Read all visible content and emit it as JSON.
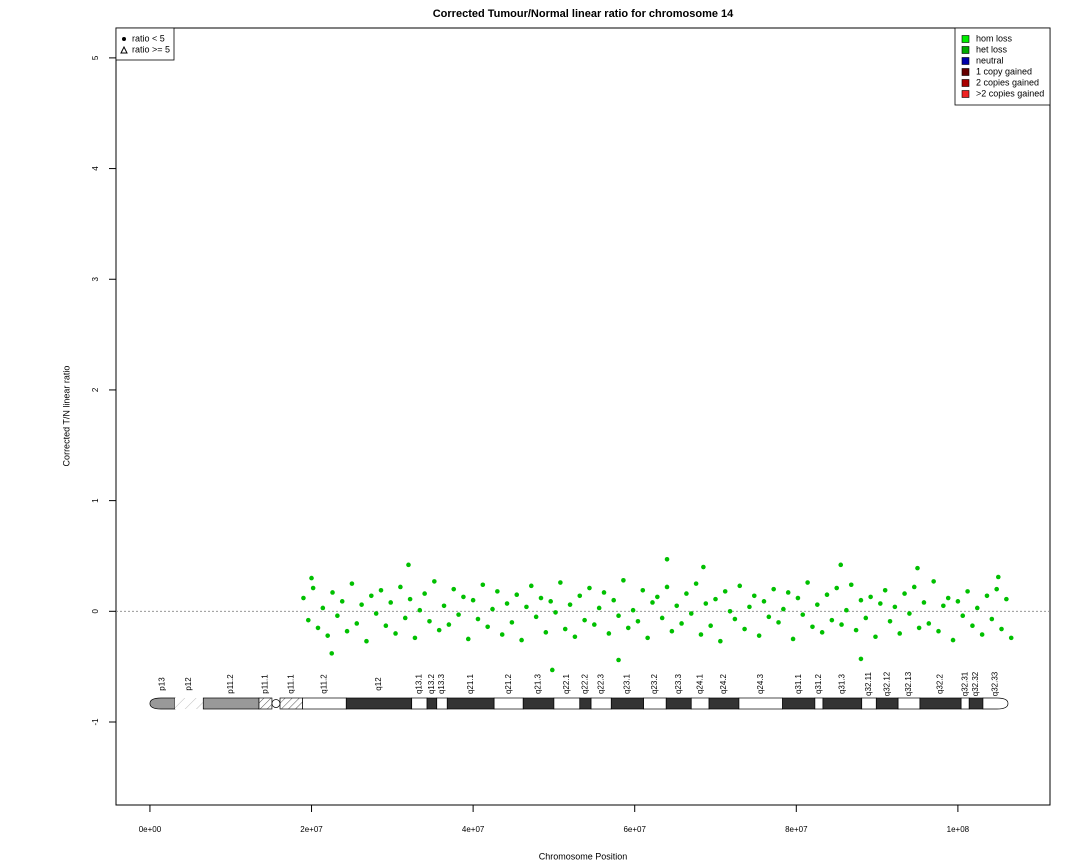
{
  "chart_data": {
    "type": "scatter",
    "title": "Corrected Tumour/Normal linear ratio for chromosome  14",
    "x_label": "Chromosome Position",
    "y_label": "Corrected T/N linear ratio",
    "xlim": [
      -4200000.0,
      111400000.0
    ],
    "ylim": [
      -1.75,
      5.27
    ],
    "xticks": [
      {
        "value": 0,
        "label": "0e+00"
      },
      {
        "value": 20000000.0,
        "label": "2e+07"
      },
      {
        "value": 40000000.0,
        "label": "4e+07"
      },
      {
        "value": 60000000.0,
        "label": "6e+07"
      },
      {
        "value": 80000000.0,
        "label": "8e+07"
      },
      {
        "value": 100000000.0,
        "label": "1e+08"
      }
    ],
    "yticks": [
      -1,
      0,
      1,
      2,
      3,
      4,
      5
    ],
    "hline": 0,
    "color": "#00c000",
    "points": {
      "x": [
        19000000.0,
        19600000.0,
        20200000.0,
        20800000.0,
        21400000.0,
        22000000.0,
        22600000.0,
        23200000.0,
        23800000.0,
        24400000.0,
        25000000.0,
        25600000.0,
        26200000.0,
        26800000.0,
        27400000.0,
        28000000.0,
        28600000.0,
        29200000.0,
        29800000.0,
        30400000.0,
        31000000.0,
        31600000.0,
        32200000.0,
        32800000.0,
        33400000.0,
        34000000.0,
        34600000.0,
        35200000.0,
        35800000.0,
        36400000.0,
        37000000.0,
        37600000.0,
        38200000.0,
        38800000.0,
        39400000.0,
        40000000.0,
        40600000.0,
        41200000.0,
        41800000.0,
        42400000.0,
        43000000.0,
        43600000.0,
        44200000.0,
        44800000.0,
        45400000.0,
        46000000.0,
        46600000.0,
        47200000.0,
        47800000.0,
        48400000.0,
        49000000.0,
        49600000.0,
        50200000.0,
        50800000.0,
        51400000.0,
        52000000.0,
        52600000.0,
        53200000.0,
        53800000.0,
        54400000.0,
        55000000.0,
        55600000.0,
        56200000.0,
        56800000.0,
        57400000.0,
        58000000.0,
        58600000.0,
        59200000.0,
        59800000.0,
        60400000.0,
        61000000.0,
        61600000.0,
        62200000.0,
        62800000.0,
        63400000.0,
        64000000.0,
        64600000.0,
        65200000.0,
        65800000.0,
        66400000.0,
        67000000.0,
        67600000.0,
        68200000.0,
        68800000.0,
        69400000.0,
        70000000.0,
        70600000.0,
        71200000.0,
        71800000.0,
        72400000.0,
        73000000.0,
        73600000.0,
        74200000.0,
        74800000.0,
        75400000.0,
        76000000.0,
        76600000.0,
        77200000.0,
        77800000.0,
        78400000.0,
        79000000.0,
        79600000.0,
        80200000.0,
        80800000.0,
        81400000.0,
        82000000.0,
        82600000.0,
        83200000.0,
        83800000.0,
        84400000.0,
        85000000.0,
        85600000.0,
        86200000.0,
        86800000.0,
        87400000.0,
        88000000.0,
        88600000.0,
        89200000.0,
        89800000.0,
        90400000.0,
        91000000.0,
        91600000.0,
        92200000.0,
        92800000.0,
        93400000.0,
        94000000.0,
        94600000.0,
        95200000.0,
        95800000.0,
        96400000.0,
        97000000.0,
        97600000.0,
        98200000.0,
        98800000.0,
        99400000.0,
        100000000.0,
        100600000.0,
        101200000.0,
        101800000.0,
        102400000.0,
        103000000.0,
        103600000.0,
        104200000.0,
        104800000.0,
        105400000.0,
        106000000.0,
        106600000.0,
        32000000.0,
        64000000.0,
        85500000.0,
        49800000.0,
        58000000.0,
        88000000.0,
        68500000.0,
        95000000.0,
        22500000.0,
        20000000.0,
        105000000.0
      ],
      "y": [
        0.12,
        -0.08,
        0.21,
        -0.15,
        0.03,
        -0.22,
        0.17,
        -0.04,
        0.09,
        -0.18,
        0.25,
        -0.11,
        0.06,
        -0.27,
        0.14,
        -0.02,
        0.19,
        -0.13,
        0.08,
        -0.2,
        0.22,
        -0.06,
        0.11,
        -0.24,
        0.01,
        0.16,
        -0.09,
        0.27,
        -0.17,
        0.05,
        -0.12,
        0.2,
        -0.03,
        0.13,
        -0.25,
        0.1,
        -0.07,
        0.24,
        -0.14,
        0.02,
        0.18,
        -0.21,
        0.07,
        -0.1,
        0.15,
        -0.26,
        0.04,
        0.23,
        -0.05,
        0.12,
        -0.19,
        0.09,
        -0.01,
        0.26,
        -0.16,
        0.06,
        -0.23,
        0.14,
        -0.08,
        0.21,
        -0.12,
        0.03,
        0.17,
        -0.2,
        0.1,
        -0.04,
        0.28,
        -0.15,
        0.01,
        -0.09,
        0.19,
        -0.24,
        0.08,
        0.13,
        -0.06,
        0.22,
        -0.18,
        0.05,
        -0.11,
        0.16,
        -0.02,
        0.25,
        -0.21,
        0.07,
        -0.13,
        0.11,
        -0.27,
        0.18,
        0.0,
        -0.07,
        0.23,
        -0.16,
        0.04,
        0.14,
        -0.22,
        0.09,
        -0.05,
        0.2,
        -0.1,
        0.02,
        0.17,
        -0.25,
        0.12,
        -0.03,
        0.26,
        -0.14,
        0.06,
        -0.19,
        0.15,
        -0.08,
        0.21,
        -0.12,
        0.01,
        0.24,
        -0.17,
        0.1,
        -0.06,
        0.13,
        -0.23,
        0.07,
        0.19,
        -0.09,
        0.04,
        -0.2,
        0.16,
        -0.02,
        0.22,
        -0.15,
        0.08,
        -0.11,
        0.27,
        -0.18,
        0.05,
        0.12,
        -0.26,
        0.09,
        -0.04,
        0.18,
        -0.13,
        0.03,
        -0.21,
        0.14,
        -0.07,
        0.2,
        -0.16,
        0.11,
        -0.24,
        0.42,
        0.47,
        0.42,
        -0.53,
        -0.44,
        -0.43,
        0.4,
        0.39,
        -0.38,
        0.3,
        0.31
      ]
    },
    "shape_legend": [
      {
        "name": "ratio < 5",
        "shape": "dot"
      },
      {
        "name": "ratio >= 5",
        "shape": "triangle"
      }
    ],
    "legend": [
      {
        "name": "hom loss",
        "color": "#00ee00"
      },
      {
        "name": "het loss",
        "color": "#00aa00"
      },
      {
        "name": "neutral",
        "color": "#0000aa"
      },
      {
        "name": "1 copy gained",
        "color": "#660000"
      },
      {
        "name": "2 copies gained",
        "color": "#aa0000"
      },
      {
        "name": ">2 copies gained",
        "color": "#ee2222"
      }
    ],
    "ideogram": [
      {
        "name": "p13",
        "start": 0,
        "end": 3100000.0,
        "stain": "gvar"
      },
      {
        "name": "p12",
        "start": 3100000.0,
        "end": 6600000.0,
        "stain": "stalk"
      },
      {
        "name": "p11.2",
        "start": 6600000.0,
        "end": 13500000.0,
        "stain": "gvar"
      },
      {
        "name": "p11.1",
        "start": 13500000.0,
        "end": 15100000.0,
        "stain": "acen"
      },
      {
        "name": "q11.1",
        "start": 16100000.0,
        "end": 18900000.0,
        "stain": "acen"
      },
      {
        "name": "q11.2",
        "start": 18900000.0,
        "end": 24300000.0,
        "stain": "gneg"
      },
      {
        "name": "q12",
        "start": 24300000.0,
        "end": 32400000.0,
        "stain": "gpos"
      },
      {
        "name": "q13.1",
        "start": 32400000.0,
        "end": 34300000.0,
        "stain": "gneg"
      },
      {
        "name": "q13.2",
        "start": 34300000.0,
        "end": 35500000.0,
        "stain": "gpos"
      },
      {
        "name": "q13.3",
        "start": 35500000.0,
        "end": 36800000.0,
        "stain": "gneg"
      },
      {
        "name": "q21.1",
        "start": 36800000.0,
        "end": 42600000.0,
        "stain": "gpos"
      },
      {
        "name": "q21.2",
        "start": 42600000.0,
        "end": 46200000.0,
        "stain": "gneg"
      },
      {
        "name": "q21.3",
        "start": 46200000.0,
        "end": 50000000.0,
        "stain": "gpos"
      },
      {
        "name": "q22.1",
        "start": 50000000.0,
        "end": 53200000.0,
        "stain": "gneg"
      },
      {
        "name": "q22.2",
        "start": 53200000.0,
        "end": 54600000.0,
        "stain": "gpos"
      },
      {
        "name": "q22.3",
        "start": 54600000.0,
        "end": 57100000.0,
        "stain": "gneg"
      },
      {
        "name": "q23.1",
        "start": 57100000.0,
        "end": 61100000.0,
        "stain": "gpos"
      },
      {
        "name": "q23.2",
        "start": 61100000.0,
        "end": 63900000.0,
        "stain": "gneg"
      },
      {
        "name": "q23.3",
        "start": 63900000.0,
        "end": 67000000.0,
        "stain": "gpos"
      },
      {
        "name": "q24.1",
        "start": 67000000.0,
        "end": 69200000.0,
        "stain": "gneg"
      },
      {
        "name": "q24.2",
        "start": 69200000.0,
        "end": 72900000.0,
        "stain": "gpos"
      },
      {
        "name": "q24.3",
        "start": 72900000.0,
        "end": 78300000.0,
        "stain": "gneg"
      },
      {
        "name": "q31.1",
        "start": 78300000.0,
        "end": 82300000.0,
        "stain": "gpos"
      },
      {
        "name": "q31.2",
        "start": 82300000.0,
        "end": 83300000.0,
        "stain": "gneg"
      },
      {
        "name": "q31.3",
        "start": 83300000.0,
        "end": 88100000.0,
        "stain": "gpos"
      },
      {
        "name": "q32.11",
        "start": 88100000.0,
        "end": 89900000.0,
        "stain": "gneg"
      },
      {
        "name": "q32.12",
        "start": 89900000.0,
        "end": 92600000.0,
        "stain": "gpos"
      },
      {
        "name": "q32.13",
        "start": 92600000.0,
        "end": 95300000.0,
        "stain": "gneg"
      },
      {
        "name": "q32.2",
        "start": 95300000.0,
        "end": 100400000.0,
        "stain": "gpos"
      },
      {
        "name": "q32.31",
        "start": 100400000.0,
        "end": 101400000.0,
        "stain": "gneg"
      },
      {
        "name": "q32.32",
        "start": 101400000.0,
        "end": 103100000.0,
        "stain": "gpos"
      },
      {
        "name": "q32.33",
        "start": 103100000.0,
        "end": 106200000.0,
        "stain": "gneg"
      }
    ]
  }
}
